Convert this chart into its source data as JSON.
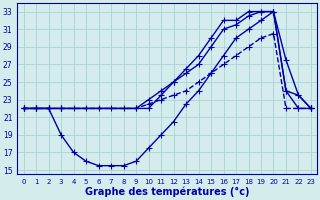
{
  "xlabel": "Graphe des températures (°c)",
  "background_color": "#d4ecec",
  "grid_color": "#a8d4d4",
  "line_color": "#0000aa",
  "xlim_min": -0.5,
  "xlim_max": 23.5,
  "ylim_min": 14.5,
  "ylim_max": 34.0,
  "yticks": [
    15,
    17,
    19,
    21,
    23,
    25,
    27,
    29,
    31,
    33
  ],
  "xticks": [
    0,
    1,
    2,
    3,
    4,
    5,
    6,
    7,
    8,
    9,
    10,
    11,
    12,
    13,
    14,
    15,
    16,
    17,
    18,
    19,
    20,
    21,
    22,
    23
  ],
  "series": [
    {
      "x": [
        0,
        1,
        2,
        3,
        9,
        10,
        11,
        12,
        13,
        14,
        15,
        16,
        17,
        18,
        19,
        20,
        21,
        22,
        23
      ],
      "y": [
        22,
        22,
        22,
        22,
        22,
        23,
        24,
        25,
        26.5,
        28,
        30,
        32,
        32,
        33,
        33,
        33,
        24,
        23.5,
        22
      ],
      "linestyle": "-",
      "marker": "+",
      "markersize": 4,
      "linewidth": 1.0
    },
    {
      "x": [
        0,
        1,
        2,
        3,
        10,
        11,
        12,
        13,
        14,
        15,
        16,
        17,
        18,
        19,
        20,
        21,
        22,
        23
      ],
      "y": [
        22,
        22,
        22,
        22,
        22,
        23.5,
        25,
        26,
        27,
        29,
        31,
        31.5,
        32.5,
        33,
        33,
        27.5,
        23.5,
        22
      ],
      "linestyle": "-",
      "marker": "+",
      "markersize": 4,
      "linewidth": 1.0
    },
    {
      "x": [
        0,
        1,
        2,
        3,
        4,
        5,
        6,
        7,
        8,
        9,
        10,
        11,
        12,
        13,
        14,
        15,
        16,
        17,
        18,
        19,
        20,
        21,
        22,
        23
      ],
      "y": [
        22,
        22,
        22,
        22,
        22,
        22,
        22,
        22,
        22,
        22,
        22.5,
        23,
        23.5,
        24,
        25,
        26,
        27,
        28,
        29,
        30,
        30.5,
        22,
        22,
        22
      ],
      "linestyle": "--",
      "marker": "+",
      "markersize": 4,
      "linewidth": 1.0
    },
    {
      "x": [
        0,
        1,
        2,
        3,
        4,
        5,
        6,
        7,
        8,
        9,
        10,
        11,
        12,
        13,
        14,
        15,
        16,
        17,
        18,
        19,
        20,
        21,
        22,
        23
      ],
      "y": [
        22,
        22,
        22,
        19,
        17,
        16,
        15.5,
        15.5,
        15.5,
        16,
        17.5,
        19,
        20.5,
        22.5,
        24,
        26,
        28,
        30,
        31,
        32,
        33,
        24,
        22,
        22
      ],
      "linestyle": "-",
      "marker": "+",
      "markersize": 4,
      "linewidth": 1.0
    }
  ]
}
